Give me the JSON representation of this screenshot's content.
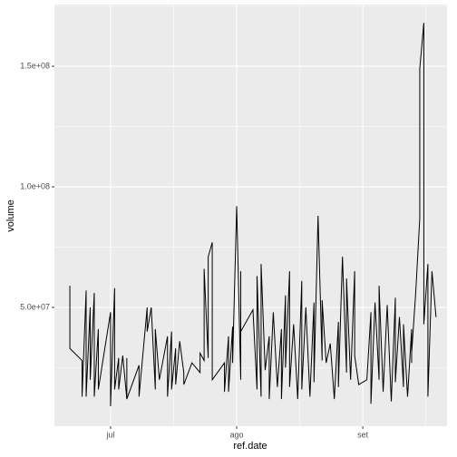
{
  "chart_data": {
    "type": "line",
    "x_label": "ref.date",
    "y_label": "volume",
    "xlim": [
      168.2,
      264.7
    ],
    "xticks": [
      {
        "value": 182,
        "label": "jul"
      },
      {
        "value": 213,
        "label": "ago"
      },
      {
        "value": 244,
        "label": "set"
      }
    ],
    "ylim": [
      750000,
      175600000
    ],
    "yticks": [
      {
        "value": 50000000,
        "label": "5.0e+07"
      },
      {
        "value": 100000000,
        "label": "1.0e+08"
      },
      {
        "value": 150000000,
        "label": "1.5e+08"
      }
    ],
    "grid": true,
    "series": [
      {
        "color": "#000000",
        "x": [
          172,
          172,
          175,
          175,
          176,
          176,
          177,
          177,
          178,
          178,
          179,
          179,
          182,
          182,
          183,
          183,
          184,
          184,
          185,
          186,
          186,
          186,
          189,
          189,
          191,
          191,
          192,
          193,
          193,
          194,
          196,
          196,
          197,
          197,
          198,
          198,
          199,
          200,
          200,
          202,
          204,
          204,
          205,
          205,
          206,
          206,
          207,
          207,
          210,
          210,
          211,
          211,
          212,
          212,
          213,
          214,
          214,
          214,
          217,
          218,
          218,
          219,
          219,
          220,
          221,
          221,
          222,
          223,
          224,
          224,
          225,
          225,
          226,
          226,
          227,
          228,
          229,
          229,
          230,
          231,
          232,
          232,
          233,
          234,
          234,
          235,
          236,
          237,
          238,
          238,
          239,
          240,
          240,
          241,
          242,
          242,
          243,
          245,
          246,
          246,
          247,
          248,
          248,
          249,
          250,
          251,
          252,
          252,
          253,
          254,
          254,
          255,
          256,
          256,
          256,
          257,
          258,
          258,
          259,
          259,
          260,
          260,
          261,
          262
        ],
        "values": [
          59000000,
          33000000,
          28000000,
          13000000,
          57000000,
          13000000,
          50000000,
          20000000,
          56000000,
          13000000,
          41000000,
          16000000,
          48000000,
          9000000,
          58000000,
          16000000,
          29000000,
          16000000,
          30000000,
          12000000,
          29000000,
          12000000,
          26000000,
          13000000,
          50000000,
          40000000,
          50000000,
          16000000,
          41000000,
          20000000,
          38000000,
          13000000,
          40000000,
          16000000,
          33000000,
          18000000,
          36000000,
          23000000,
          18000000,
          27000000,
          23000000,
          31000000,
          28000000,
          66000000,
          29000000,
          71000000,
          77000000,
          20000000,
          27000000,
          15000000,
          38000000,
          15000000,
          42000000,
          27000000,
          92000000,
          20000000,
          65000000,
          40000000,
          49000000,
          16000000,
          63000000,
          13000000,
          68000000,
          24000000,
          38000000,
          12000000,
          48000000,
          17000000,
          41000000,
          12000000,
          55000000,
          25000000,
          65000000,
          17000000,
          43000000,
          12000000,
          61000000,
          16000000,
          50000000,
          13000000,
          52000000,
          19000000,
          88000000,
          28000000,
          53000000,
          27000000,
          35000000,
          12000000,
          44000000,
          17000000,
          71000000,
          23000000,
          62000000,
          20000000,
          65000000,
          30000000,
          18000000,
          20000000,
          48000000,
          10000000,
          52000000,
          20000000,
          59000000,
          15000000,
          51000000,
          11000000,
          54000000,
          19000000,
          46000000,
          17000000,
          43000000,
          13000000,
          41000000,
          27000000,
          31000000,
          56000000,
          87000000,
          149000000,
          168000000,
          43000000,
          68000000,
          13000000,
          65000000,
          46000000
        ]
      }
    ]
  }
}
